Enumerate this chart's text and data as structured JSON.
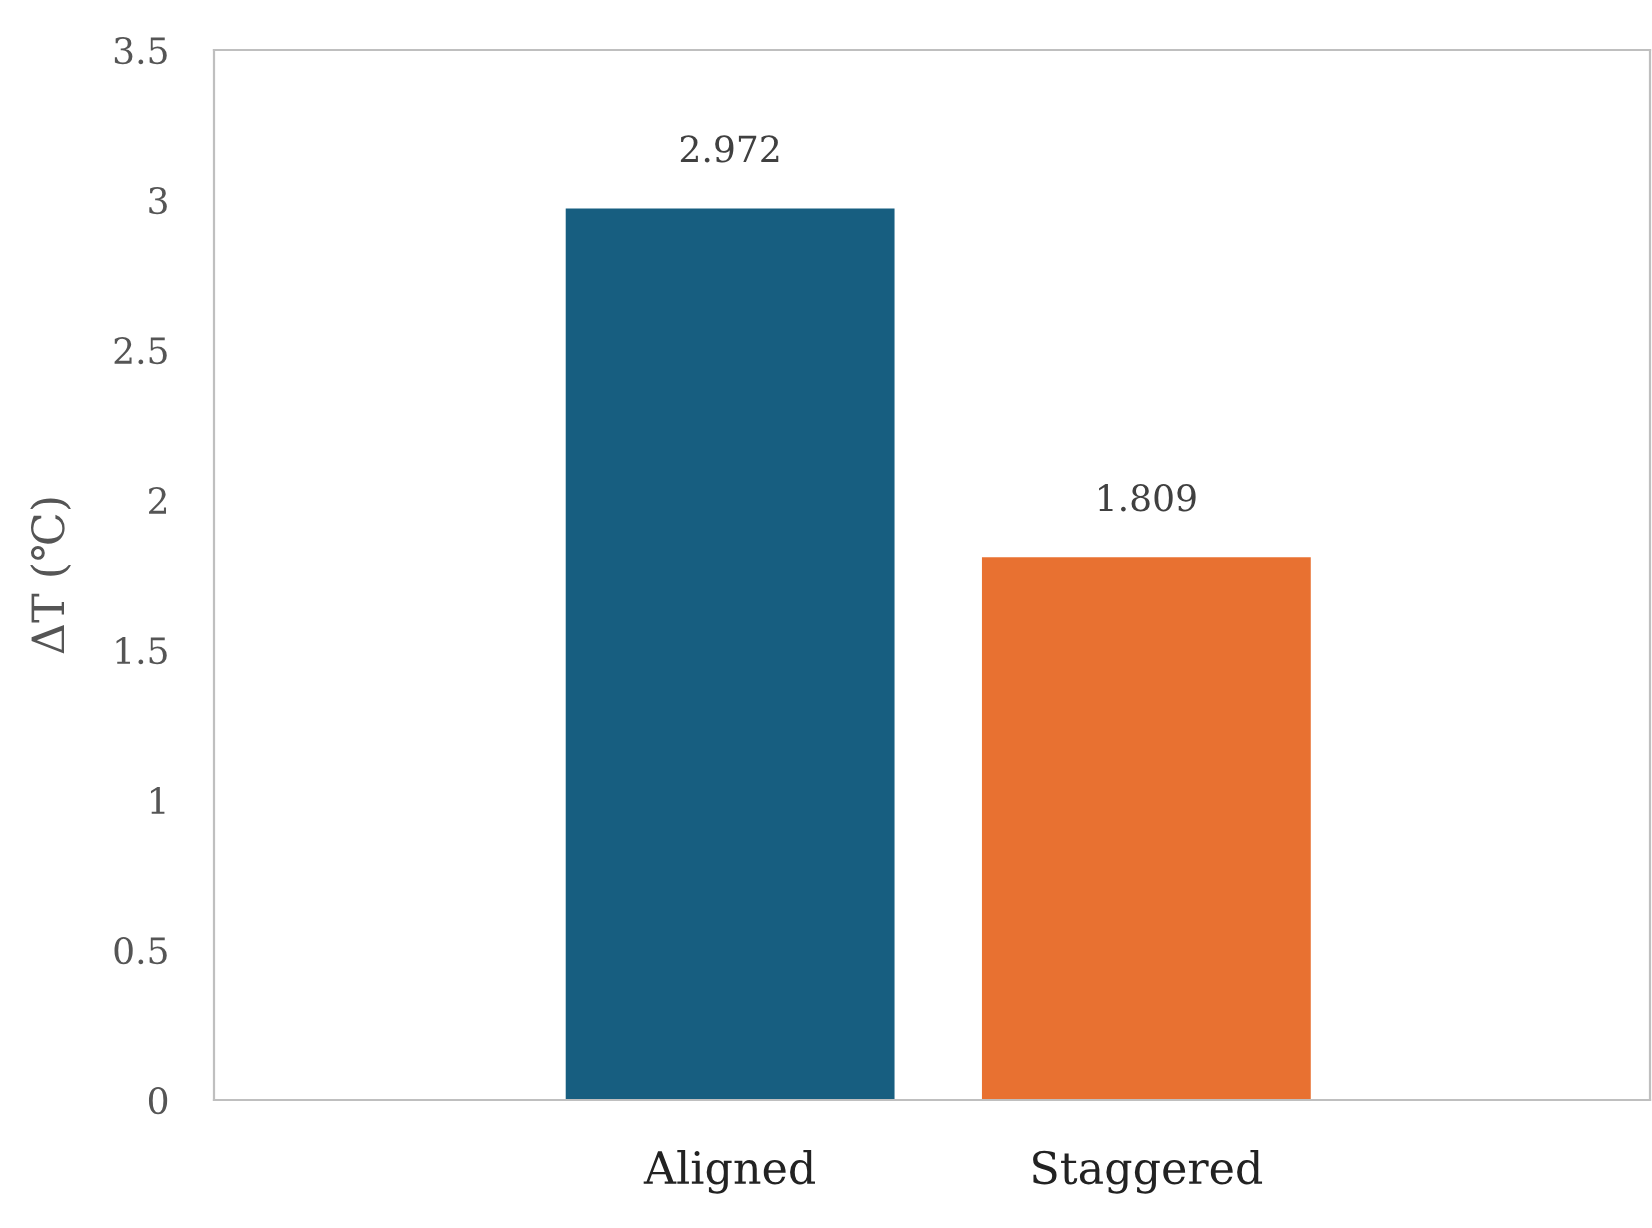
{
  "chart_data": {
    "type": "bar",
    "ylabel": "ΔT (℃)",
    "categories": [
      "Aligned",
      "Staggered"
    ],
    "values": [
      2.972,
      1.809
    ],
    "colors": [
      "#175e80",
      "#e87131"
    ],
    "ylim": [
      0,
      3.5
    ],
    "yticks": [
      0,
      0.5,
      1,
      1.5,
      2,
      2.5,
      3,
      3.5
    ],
    "data_labels": true
  }
}
